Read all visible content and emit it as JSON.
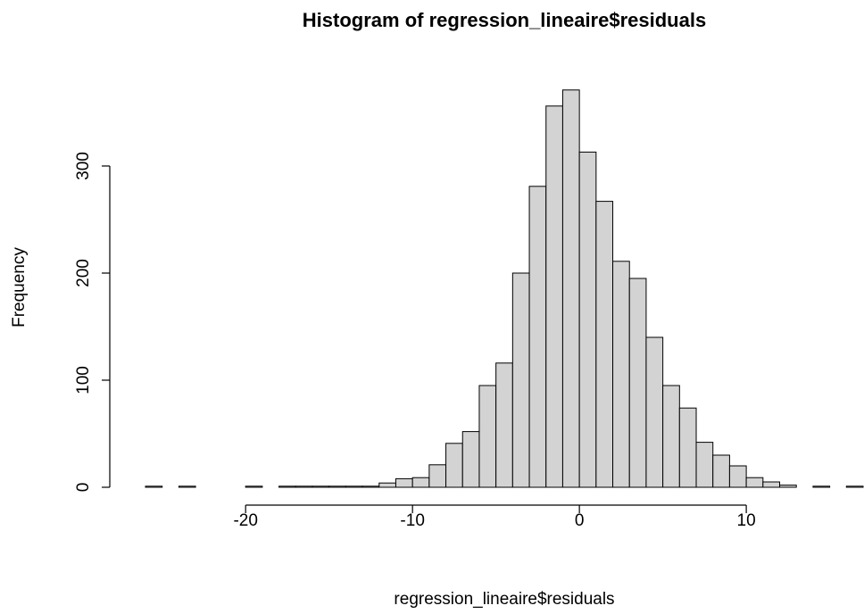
{
  "chart_data": {
    "type": "histogram",
    "title": "Histogram of regression_lineaire$residuals",
    "x_label": "regression_lineaire$residuals",
    "y_label": "Frequency",
    "bins": [
      -26,
      -25,
      -24,
      -23,
      -22,
      -21,
      -20,
      -19,
      -18,
      -17,
      -16,
      -15,
      -14,
      -13,
      -12,
      -11,
      -10,
      -9,
      -8,
      -7,
      -6,
      -5,
      -4,
      -3,
      -2,
      -1,
      0,
      1,
      2,
      3,
      4,
      5,
      6,
      7,
      8,
      9,
      10,
      11,
      12,
      13,
      14,
      15,
      16,
      17
    ],
    "values": [
      1,
      0,
      1,
      0,
      0,
      0,
      1,
      0,
      1,
      1,
      1,
      1,
      1,
      1,
      4,
      8,
      9,
      21,
      41,
      52,
      95,
      116,
      200,
      281,
      356,
      371,
      313,
      267,
      211,
      195,
      140,
      95,
      74,
      42,
      30,
      20,
      9,
      5,
      2,
      0,
      1,
      0,
      1
    ],
    "color": "#d3d3d3",
    "xlim": [
      -26,
      17
    ],
    "xticks": [
      -20,
      -10,
      0,
      10
    ],
    "ylim": [
      0,
      380
    ],
    "yticks": [
      0,
      100,
      200,
      300
    ]
  }
}
